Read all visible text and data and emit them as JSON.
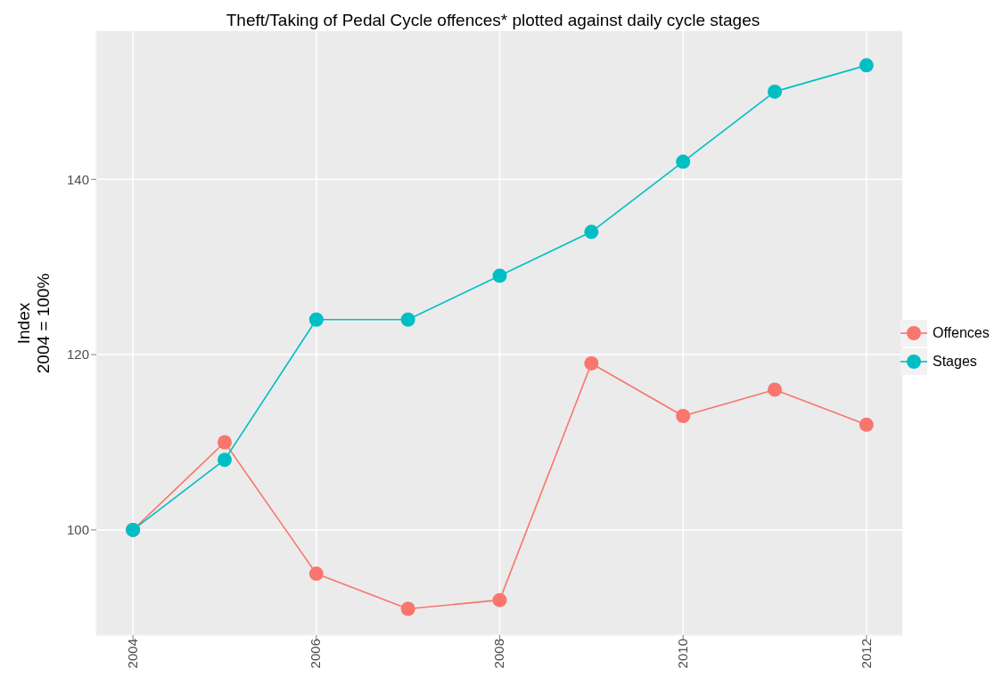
{
  "chart_data": {
    "type": "line",
    "title": "Theft/Taking of Pedal Cycle offences* plotted against daily cycle stages",
    "ylabel": "Index\n2004 = 100%",
    "x": [
      2004,
      2005,
      2006,
      2007,
      2008,
      2009,
      2010,
      2011,
      2012
    ],
    "series": [
      {
        "name": "Offences",
        "color": "#f8766d",
        "values": [
          100,
          110,
          95,
          91,
          92,
          119,
          113,
          116,
          112
        ]
      },
      {
        "name": "Stages",
        "color": "#00bfc4",
        "values": [
          100,
          108,
          124,
          124,
          129,
          134,
          142,
          150,
          153
        ]
      }
    ],
    "xlim": [
      2003.6,
      2012.4
    ],
    "xticks": [
      2004,
      2006,
      2008,
      2010,
      2012
    ],
    "ylim": [
      88,
      157
    ],
    "yticks": [
      100,
      120,
      140
    ],
    "grid": true,
    "legend": "right",
    "marker": "circle",
    "line_style": "solid"
  }
}
